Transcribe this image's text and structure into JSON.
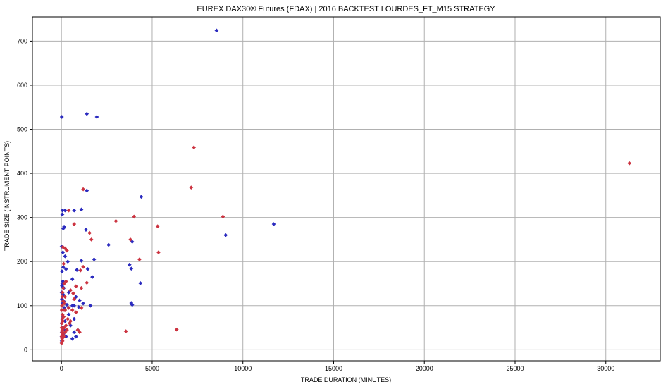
{
  "chart_data": {
    "type": "scatter",
    "title": "EUREX DAX30® Futures (FDAX) | 2016 BACKTEST LOURDES_FT_M15 STRATEGY",
    "xlabel": "TRADE DURATION (MINUTES)",
    "ylabel": "TRADE SIZE (INSTRUMENT POINTS)",
    "xlim": [
      -1600,
      33000
    ],
    "ylim": [
      -25,
      755
    ],
    "xticks": [
      0,
      5000,
      10000,
      15000,
      20000,
      25000,
      30000
    ],
    "yticks": [
      0,
      100,
      200,
      300,
      400,
      500,
      600,
      700
    ],
    "grid": true,
    "legend": "none",
    "series": [
      {
        "color": "#2b2bbf",
        "marker": "diamond",
        "points": [
          [
            8550,
            724
          ],
          [
            20,
            528
          ],
          [
            1400,
            535
          ],
          [
            1950,
            528
          ],
          [
            4400,
            347
          ],
          [
            1400,
            361
          ],
          [
            1100,
            318
          ],
          [
            60,
            316
          ],
          [
            200,
            316
          ],
          [
            700,
            316
          ],
          [
            50,
            307
          ],
          [
            150,
            279
          ],
          [
            100,
            275
          ],
          [
            9050,
            260
          ],
          [
            11700,
            285
          ],
          [
            1350,
            272
          ],
          [
            2600,
            238
          ],
          [
            3900,
            245
          ],
          [
            80,
            221
          ],
          [
            200,
            212
          ],
          [
            10,
            234
          ],
          [
            1800,
            205
          ],
          [
            1100,
            202
          ],
          [
            3750,
            193
          ],
          [
            3850,
            184
          ],
          [
            250,
            183
          ],
          [
            850,
            181
          ],
          [
            1450,
            183
          ],
          [
            100,
            187
          ],
          [
            30,
            178
          ],
          [
            350,
            200
          ],
          [
            1700,
            165
          ],
          [
            50,
            150
          ],
          [
            130,
            140
          ],
          [
            80,
            155
          ],
          [
            30,
            145
          ],
          [
            10,
            130
          ],
          [
            100,
            125
          ],
          [
            30,
            115
          ],
          [
            130,
            110
          ],
          [
            60,
            105
          ],
          [
            3850,
            106
          ],
          [
            3900,
            102
          ],
          [
            300,
            102
          ],
          [
            600,
            100
          ],
          [
            700,
            100
          ],
          [
            950,
            97
          ],
          [
            1200,
            105
          ],
          [
            1600,
            100
          ],
          [
            4350,
            151
          ],
          [
            600,
            160
          ],
          [
            800,
            120
          ],
          [
            1000,
            112
          ],
          [
            400,
            130
          ],
          [
            400,
            95
          ],
          [
            150,
            95
          ],
          [
            400,
            80
          ],
          [
            700,
            70
          ],
          [
            500,
            55
          ],
          [
            700,
            40
          ],
          [
            900,
            45
          ],
          [
            600,
            25
          ],
          [
            800,
            30
          ],
          [
            200,
            65
          ],
          [
            100,
            75
          ],
          [
            30,
            70
          ],
          [
            10,
            60
          ],
          [
            50,
            50
          ],
          [
            20,
            40
          ],
          [
            10,
            30
          ],
          [
            20,
            20
          ],
          [
            100,
            35
          ],
          [
            150,
            45
          ],
          [
            250,
            30
          ]
        ]
      },
      {
        "color": "#cc3340",
        "marker": "diamond",
        "points": [
          [
            31300,
            423
          ],
          [
            7300,
            459
          ],
          [
            7150,
            368
          ],
          [
            8900,
            302
          ],
          [
            5300,
            280
          ],
          [
            5350,
            221
          ],
          [
            4000,
            302
          ],
          [
            4300,
            205
          ],
          [
            3800,
            250
          ],
          [
            3000,
            292
          ],
          [
            3550,
            42
          ],
          [
            6350,
            46
          ],
          [
            1200,
            364
          ],
          [
            1550,
            265
          ],
          [
            700,
            285
          ],
          [
            400,
            316
          ],
          [
            1650,
            250
          ],
          [
            1200,
            188
          ],
          [
            1050,
            180
          ],
          [
            1400,
            152
          ],
          [
            1100,
            140
          ],
          [
            800,
            144
          ],
          [
            650,
            128
          ],
          [
            500,
            135
          ],
          [
            300,
            225
          ],
          [
            200,
            230
          ],
          [
            80,
            233
          ],
          [
            120,
            195
          ],
          [
            250,
            155
          ],
          [
            150,
            150
          ],
          [
            100,
            140
          ],
          [
            200,
            120
          ],
          [
            100,
            110
          ],
          [
            30,
            100
          ],
          [
            150,
            90
          ],
          [
            400,
            95
          ],
          [
            600,
            90
          ],
          [
            800,
            85
          ],
          [
            1100,
            95
          ],
          [
            350,
            70
          ],
          [
            450,
            60
          ],
          [
            250,
            55
          ],
          [
            150,
            50
          ],
          [
            50,
            45
          ],
          [
            900,
            45
          ],
          [
            1000,
            40
          ],
          [
            60,
            80
          ],
          [
            20,
            90
          ],
          [
            40,
            70
          ],
          [
            20,
            60
          ],
          [
            10,
            50
          ],
          [
            30,
            40
          ],
          [
            15,
            30
          ],
          [
            40,
            25
          ],
          [
            60,
            20
          ],
          [
            10,
            15
          ],
          [
            80,
            35
          ],
          [
            120,
            30
          ],
          [
            200,
            40
          ],
          [
            300,
            45
          ],
          [
            500,
            65
          ],
          [
            700,
            115
          ],
          [
            200,
            90
          ],
          [
            120,
            75
          ],
          [
            80,
            65
          ],
          [
            150,
            105
          ],
          [
            40,
            120
          ],
          [
            60,
            130
          ]
        ]
      }
    ]
  }
}
